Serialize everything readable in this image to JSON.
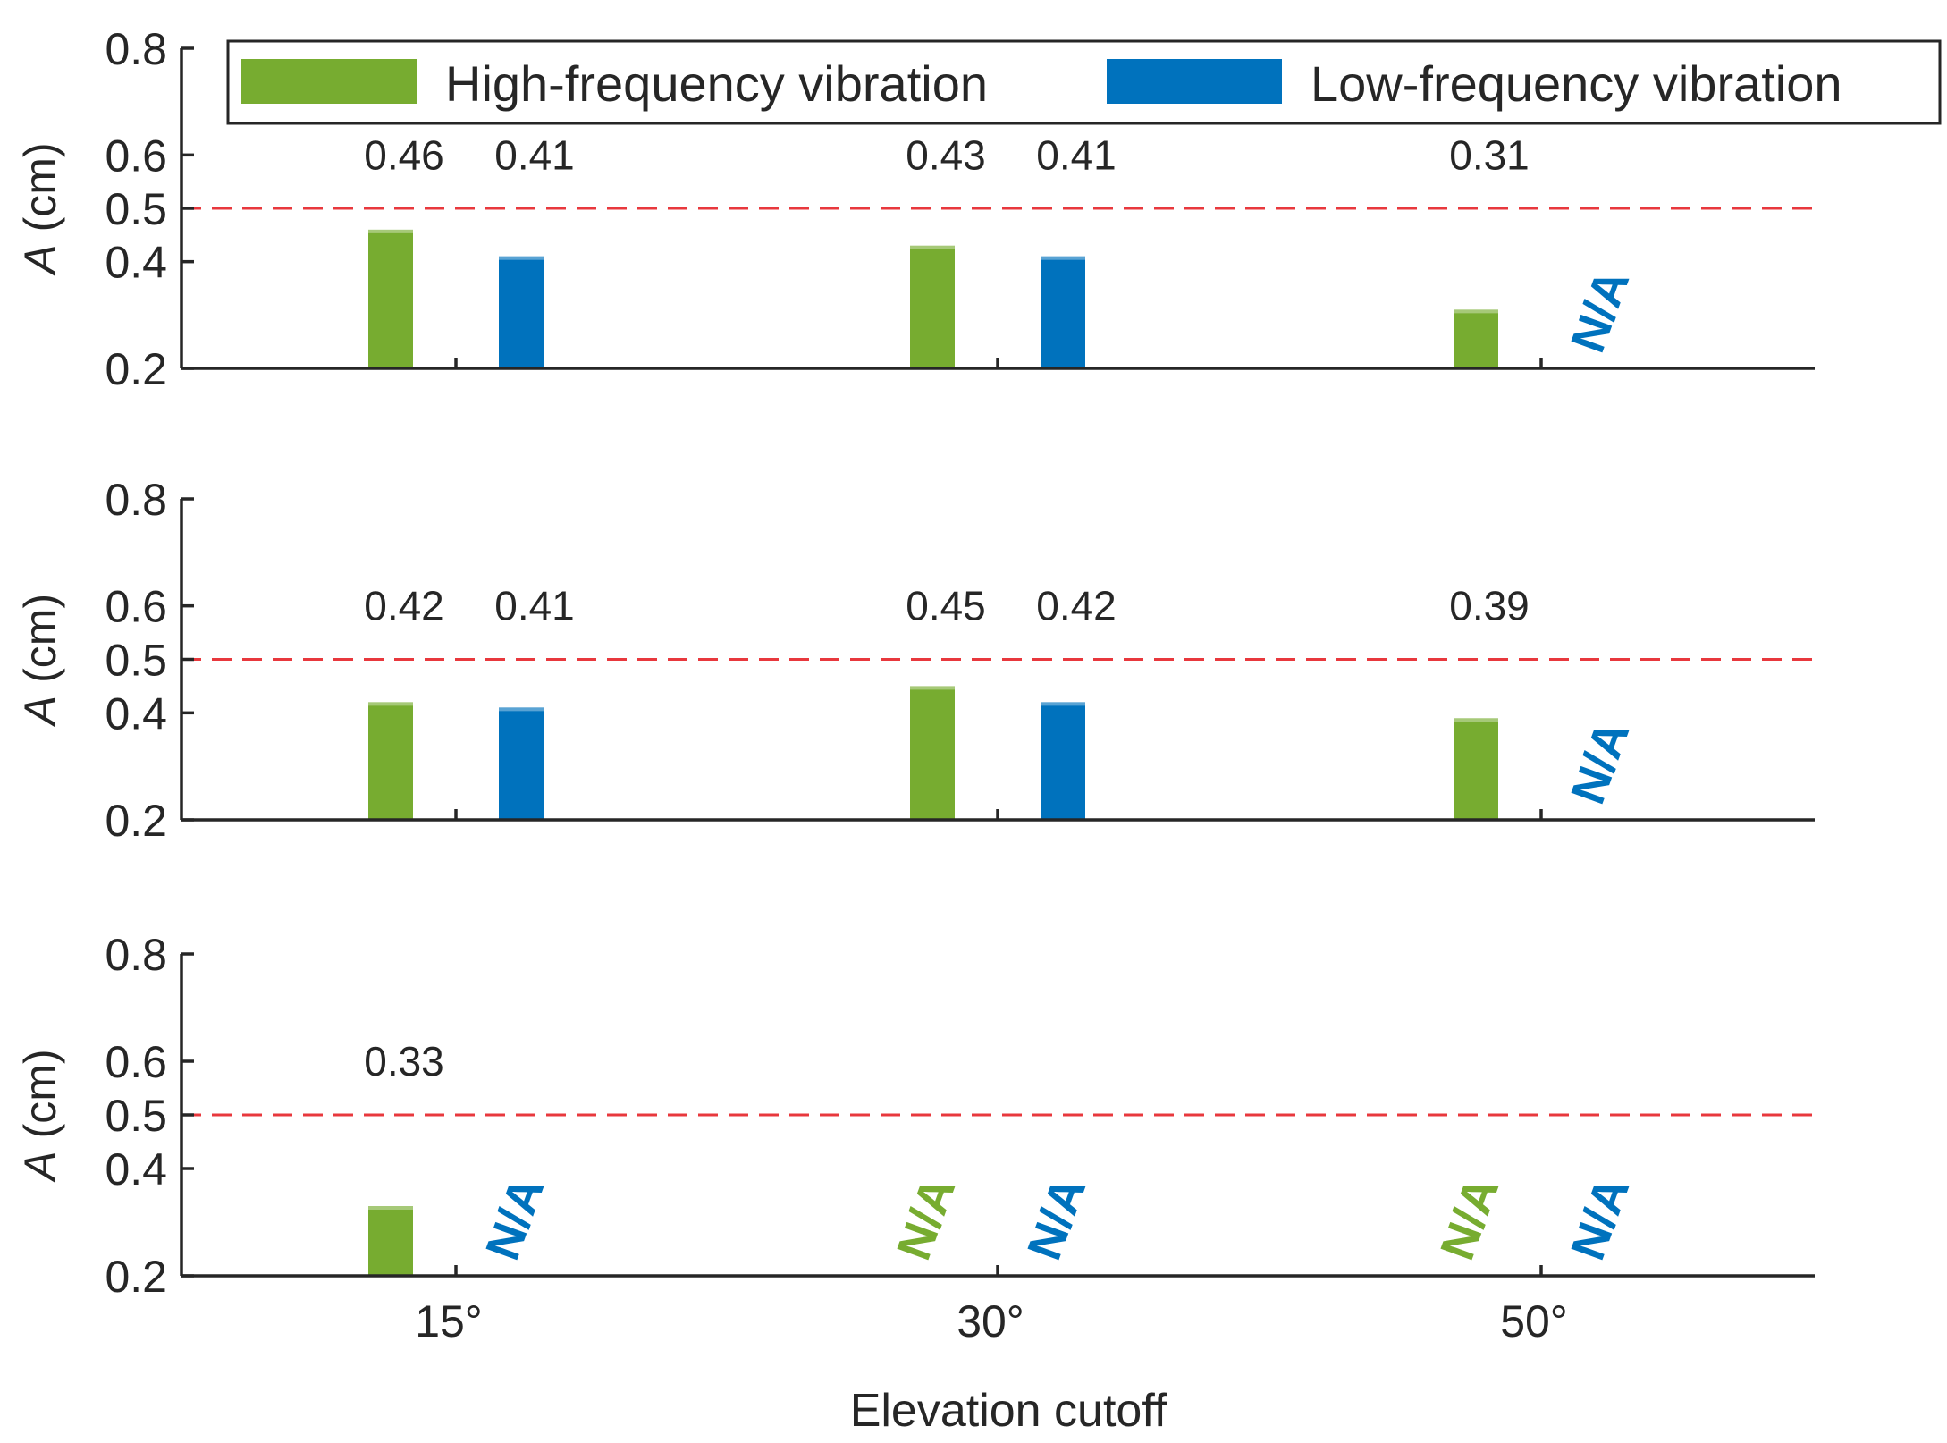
{
  "chart_data": {
    "type": "bar",
    "xlabel": "Elevation cutoff",
    "ylabel": "A (cm)",
    "ylabel_italic_part": "A",
    "ylabel_unit_part": " (cm)",
    "categories": [
      "15°",
      "30°",
      "50°"
    ],
    "ylim": [
      0.2,
      0.8
    ],
    "yticks": [
      0.2,
      0.4,
      0.5,
      0.6,
      0.8
    ],
    "ytick_labels": [
      "0.2",
      "0.4",
      "0.5",
      "0.6",
      "0.8"
    ],
    "threshold": 0.5,
    "threshold_color": "#e8383d",
    "na_text": "N/A",
    "legend": {
      "position": "top",
      "entries": [
        {
          "name": "High-frequency vibration",
          "color": "#77ac30"
        },
        {
          "name": "Low-frequency vibration",
          "color": "#0072bd"
        }
      ]
    },
    "panels": [
      {
        "series": [
          {
            "name": "High-frequency vibration",
            "values": [
              0.46,
              0.43,
              0.31
            ],
            "labels": [
              "0.46",
              "0.43",
              "0.31"
            ]
          },
          {
            "name": "Low-frequency vibration",
            "values": [
              0.41,
              0.41,
              null
            ],
            "labels": [
              "0.41",
              "0.41",
              null
            ]
          }
        ]
      },
      {
        "series": [
          {
            "name": "High-frequency vibration",
            "values": [
              0.42,
              0.45,
              0.39
            ],
            "labels": [
              "0.42",
              "0.45",
              "0.39"
            ]
          },
          {
            "name": "Low-frequency vibration",
            "values": [
              0.41,
              0.42,
              null
            ],
            "labels": [
              "0.41",
              "0.42",
              null
            ]
          }
        ]
      },
      {
        "series": [
          {
            "name": "High-frequency vibration",
            "values": [
              0.33,
              null,
              null
            ],
            "labels": [
              "0.33",
              null,
              null
            ]
          },
          {
            "name": "Low-frequency vibration",
            "values": [
              null,
              null,
              null
            ],
            "labels": [
              null,
              null,
              null
            ]
          }
        ]
      }
    ]
  }
}
